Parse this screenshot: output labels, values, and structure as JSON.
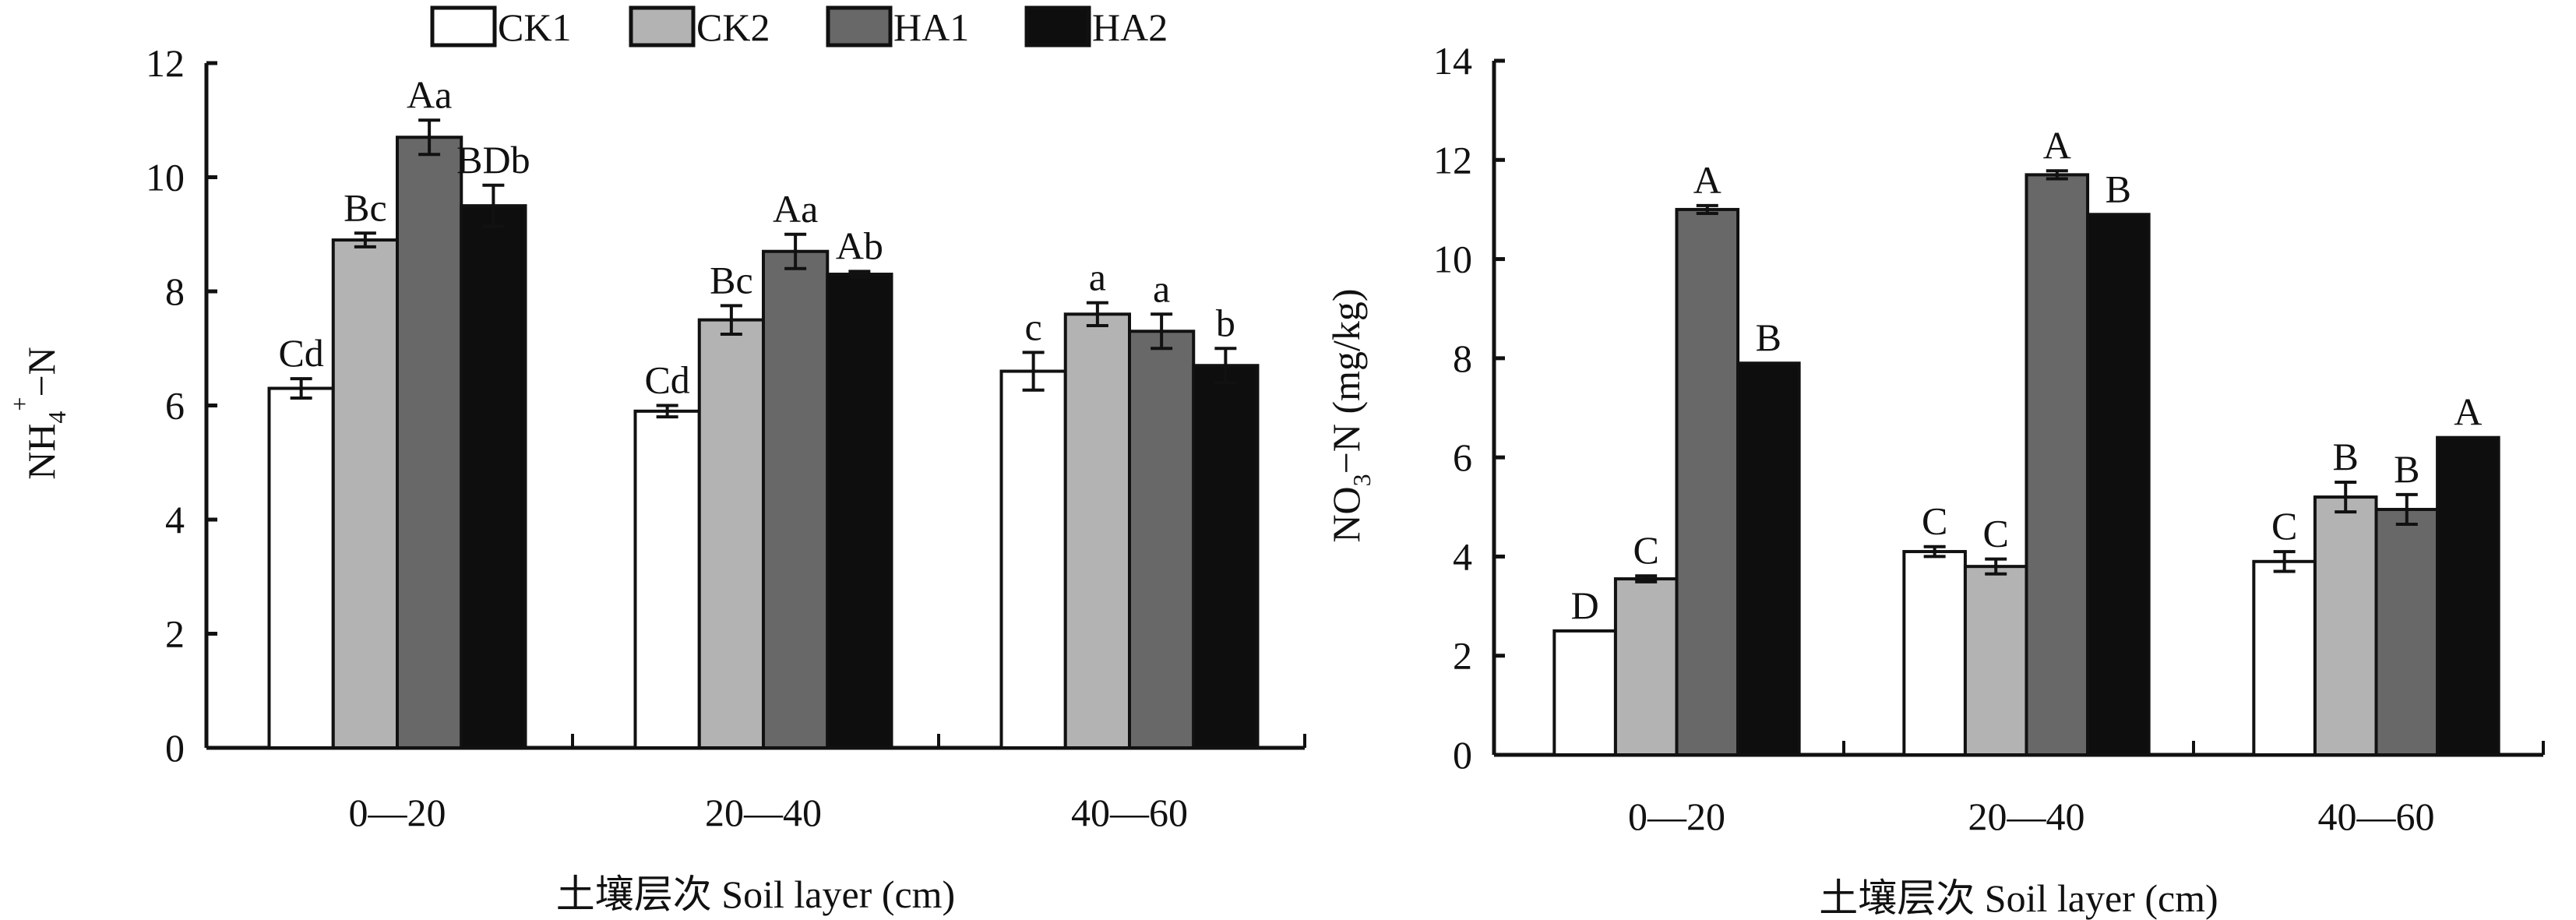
{
  "legend": [
    {
      "name": "CK1",
      "color": "#ffffff"
    },
    {
      "name": "CK2",
      "color": "#b3b3b3"
    },
    {
      "name": "HA1",
      "color": "#686868"
    },
    {
      "name": "HA2",
      "color": "#0e0e0e"
    }
  ],
  "chart_data": [
    {
      "type": "bar",
      "ylabel": {
        "main": "NH",
        "sub": "4",
        "sup": "+",
        "rest": "−N"
      },
      "xlabel": "土壤层次 Soil layer (cm)",
      "categories": [
        "0—20",
        "20—40",
        "40—60"
      ],
      "ylim": [
        0,
        12
      ],
      "yticks": [
        0,
        2,
        4,
        6,
        8,
        10,
        12
      ],
      "grid": false,
      "legend_position": "top",
      "series": [
        {
          "name": "CK1",
          "values": [
            6.3,
            5.9,
            6.6
          ],
          "errors": [
            0.17,
            0.1,
            0.33
          ],
          "labels": [
            "Cd",
            "Cd",
            "c"
          ]
        },
        {
          "name": "CK2",
          "values": [
            8.9,
            7.5,
            7.6
          ],
          "errors": [
            0.12,
            0.25,
            0.2
          ],
          "labels": [
            "Bc",
            "Bc",
            "a"
          ]
        },
        {
          "name": "HA1",
          "values": [
            10.7,
            8.7,
            7.3
          ],
          "errors": [
            0.3,
            0.3,
            0.3
          ],
          "labels": [
            "Aa",
            "Aa",
            "a"
          ]
        },
        {
          "name": "HA2",
          "values": [
            9.5,
            8.3,
            6.7
          ],
          "errors": [
            0.36,
            0.05,
            0.3
          ],
          "labels": [
            "BDb",
            "Ab",
            "b"
          ]
        }
      ]
    },
    {
      "type": "bar",
      "ylabel": {
        "main": "NO",
        "sub": "3",
        "sup": "",
        "rest": "−N (mg/kg)"
      },
      "xlabel": "土壤层次 Soil layer (cm)",
      "categories": [
        "0—20",
        "20—40",
        "40—60"
      ],
      "ylim": [
        0,
        14
      ],
      "yticks": [
        0,
        2,
        4,
        6,
        8,
        10,
        12,
        14
      ],
      "grid": false,
      "series": [
        {
          "name": "CK1",
          "values": [
            2.5,
            4.1,
            3.9
          ],
          "errors": [
            0,
            0.1,
            0.2
          ],
          "labels": [
            "D",
            "C",
            "C"
          ]
        },
        {
          "name": "CK2",
          "values": [
            3.55,
            3.8,
            5.2
          ],
          "errors": [
            0.06,
            0.15,
            0.3
          ],
          "labels": [
            "C",
            "C",
            "B"
          ]
        },
        {
          "name": "HA1",
          "values": [
            11.0,
            11.7,
            4.95
          ],
          "errors": [
            0.08,
            0.08,
            0.3
          ],
          "labels": [
            "A",
            "A",
            "B"
          ]
        },
        {
          "name": "HA2",
          "values": [
            7.9,
            10.9,
            6.4
          ],
          "errors": [
            0,
            0,
            0
          ],
          "labels": [
            "B",
            "B",
            "A"
          ]
        }
      ]
    }
  ]
}
